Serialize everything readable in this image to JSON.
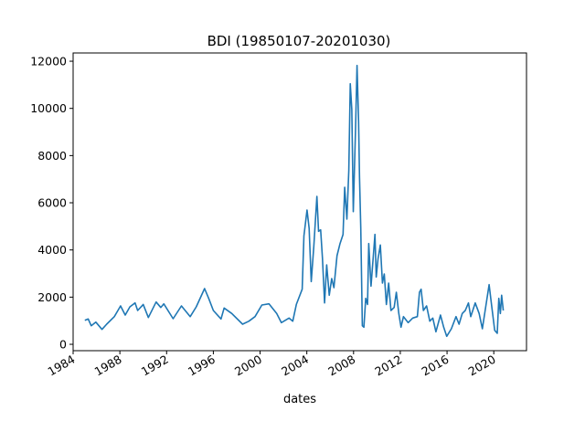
{
  "chart_data": {
    "type": "line",
    "title": "BDI (19850107-20201030)",
    "xlabel": "dates",
    "ylabel": "",
    "x_ticks": [
      "1984",
      "1988",
      "1992",
      "1996",
      "2000",
      "2004",
      "2008",
      "2012",
      "2016",
      "2020"
    ],
    "y_ticks": [
      "0",
      "2000",
      "4000",
      "6000",
      "8000",
      "10000",
      "12000"
    ],
    "xlim": [
      1984.0,
      2022.8
    ],
    "ylim": [
      -270,
      12350
    ],
    "grid": false,
    "line_color": "#1f77b4",
    "series": [
      {
        "points": [
          [
            1985.0,
            1018
          ],
          [
            1985.29,
            1072
          ],
          [
            1985.55,
            786
          ],
          [
            1985.94,
            941
          ],
          [
            1986.47,
            631
          ],
          [
            1986.87,
            852
          ],
          [
            1987.53,
            1173
          ],
          [
            1988.06,
            1626
          ],
          [
            1988.46,
            1239
          ],
          [
            1988.86,
            1587
          ],
          [
            1989.3,
            1754
          ],
          [
            1989.52,
            1432
          ],
          [
            1990.0,
            1690
          ],
          [
            1990.44,
            1135
          ],
          [
            1991.1,
            1793
          ],
          [
            1991.5,
            1561
          ],
          [
            1991.76,
            1716
          ],
          [
            1992.56,
            1084
          ],
          [
            1993.27,
            1626
          ],
          [
            1994.02,
            1173
          ],
          [
            1994.54,
            1587
          ],
          [
            1995.25,
            2362
          ],
          [
            1995.6,
            1948
          ],
          [
            1996.0,
            1432
          ],
          [
            1996.66,
            1072
          ],
          [
            1996.92,
            1537
          ],
          [
            1997.58,
            1305
          ],
          [
            1998.5,
            852
          ],
          [
            1999.04,
            980
          ],
          [
            1999.57,
            1173
          ],
          [
            2000.15,
            1665
          ],
          [
            2000.76,
            1716
          ],
          [
            2001.42,
            1305
          ],
          [
            2001.82,
            917
          ],
          [
            2002.48,
            1111
          ],
          [
            2002.8,
            980
          ],
          [
            2003.1,
            1690
          ],
          [
            2003.6,
            2335
          ],
          [
            2003.75,
            4595
          ],
          [
            2004.02,
            5691
          ],
          [
            2004.2,
            4917
          ],
          [
            2004.38,
            2659
          ],
          [
            2004.6,
            4142
          ],
          [
            2004.86,
            6272
          ],
          [
            2005.0,
            4788
          ],
          [
            2005.18,
            4851
          ],
          [
            2005.34,
            3627
          ],
          [
            2005.52,
            1754
          ],
          [
            2005.7,
            3368
          ],
          [
            2005.92,
            2079
          ],
          [
            2006.13,
            2787
          ],
          [
            2006.32,
            2400
          ],
          [
            2006.58,
            3755
          ],
          [
            2006.84,
            4270
          ],
          [
            2007.1,
            4657
          ],
          [
            2007.24,
            6659
          ],
          [
            2007.43,
            5304
          ],
          [
            2007.59,
            7368
          ],
          [
            2007.72,
            11045
          ],
          [
            2007.85,
            9950
          ],
          [
            2007.98,
            5625
          ],
          [
            2008.17,
            9175
          ],
          [
            2008.3,
            11820
          ],
          [
            2008.43,
            9435
          ],
          [
            2008.51,
            7112
          ],
          [
            2008.62,
            4917
          ],
          [
            2008.75,
            786
          ],
          [
            2008.88,
            724
          ],
          [
            2009.04,
            1948
          ],
          [
            2009.2,
            1690
          ],
          [
            2009.3,
            4270
          ],
          [
            2009.49,
            2466
          ],
          [
            2009.67,
            3627
          ],
          [
            2009.83,
            4657
          ],
          [
            2009.94,
            2853
          ],
          [
            2010.1,
            3627
          ],
          [
            2010.29,
            4208
          ],
          [
            2010.47,
            2594
          ],
          [
            2010.63,
            2981
          ],
          [
            2010.81,
            1690
          ],
          [
            2011.0,
            2594
          ],
          [
            2011.2,
            1432
          ],
          [
            2011.47,
            1561
          ],
          [
            2011.66,
            2207
          ],
          [
            2011.87,
            1305
          ],
          [
            2012.06,
            724
          ],
          [
            2012.27,
            1173
          ],
          [
            2012.67,
            917
          ],
          [
            2013.06,
            1111
          ],
          [
            2013.46,
            1173
          ],
          [
            2013.64,
            2207
          ],
          [
            2013.78,
            2335
          ],
          [
            2013.98,
            1432
          ],
          [
            2014.25,
            1626
          ],
          [
            2014.52,
            980
          ],
          [
            2014.78,
            1111
          ],
          [
            2015.05,
            530
          ],
          [
            2015.44,
            1239
          ],
          [
            2015.71,
            724
          ],
          [
            2015.97,
            337
          ],
          [
            2016.37,
            658
          ],
          [
            2016.77,
            1173
          ],
          [
            2017.03,
            852
          ],
          [
            2017.3,
            1305
          ],
          [
            2017.56,
            1432
          ],
          [
            2017.83,
            1754
          ],
          [
            2018.03,
            1173
          ],
          [
            2018.41,
            1754
          ],
          [
            2018.75,
            1305
          ],
          [
            2019.02,
            658
          ],
          [
            2019.42,
            1948
          ],
          [
            2019.6,
            2530
          ],
          [
            2019.82,
            1626
          ],
          [
            2020.08,
            593
          ],
          [
            2020.3,
            465
          ],
          [
            2020.43,
            1948
          ],
          [
            2020.56,
            1305
          ],
          [
            2020.67,
            2079
          ],
          [
            2020.81,
            1432
          ]
        ]
      }
    ]
  }
}
